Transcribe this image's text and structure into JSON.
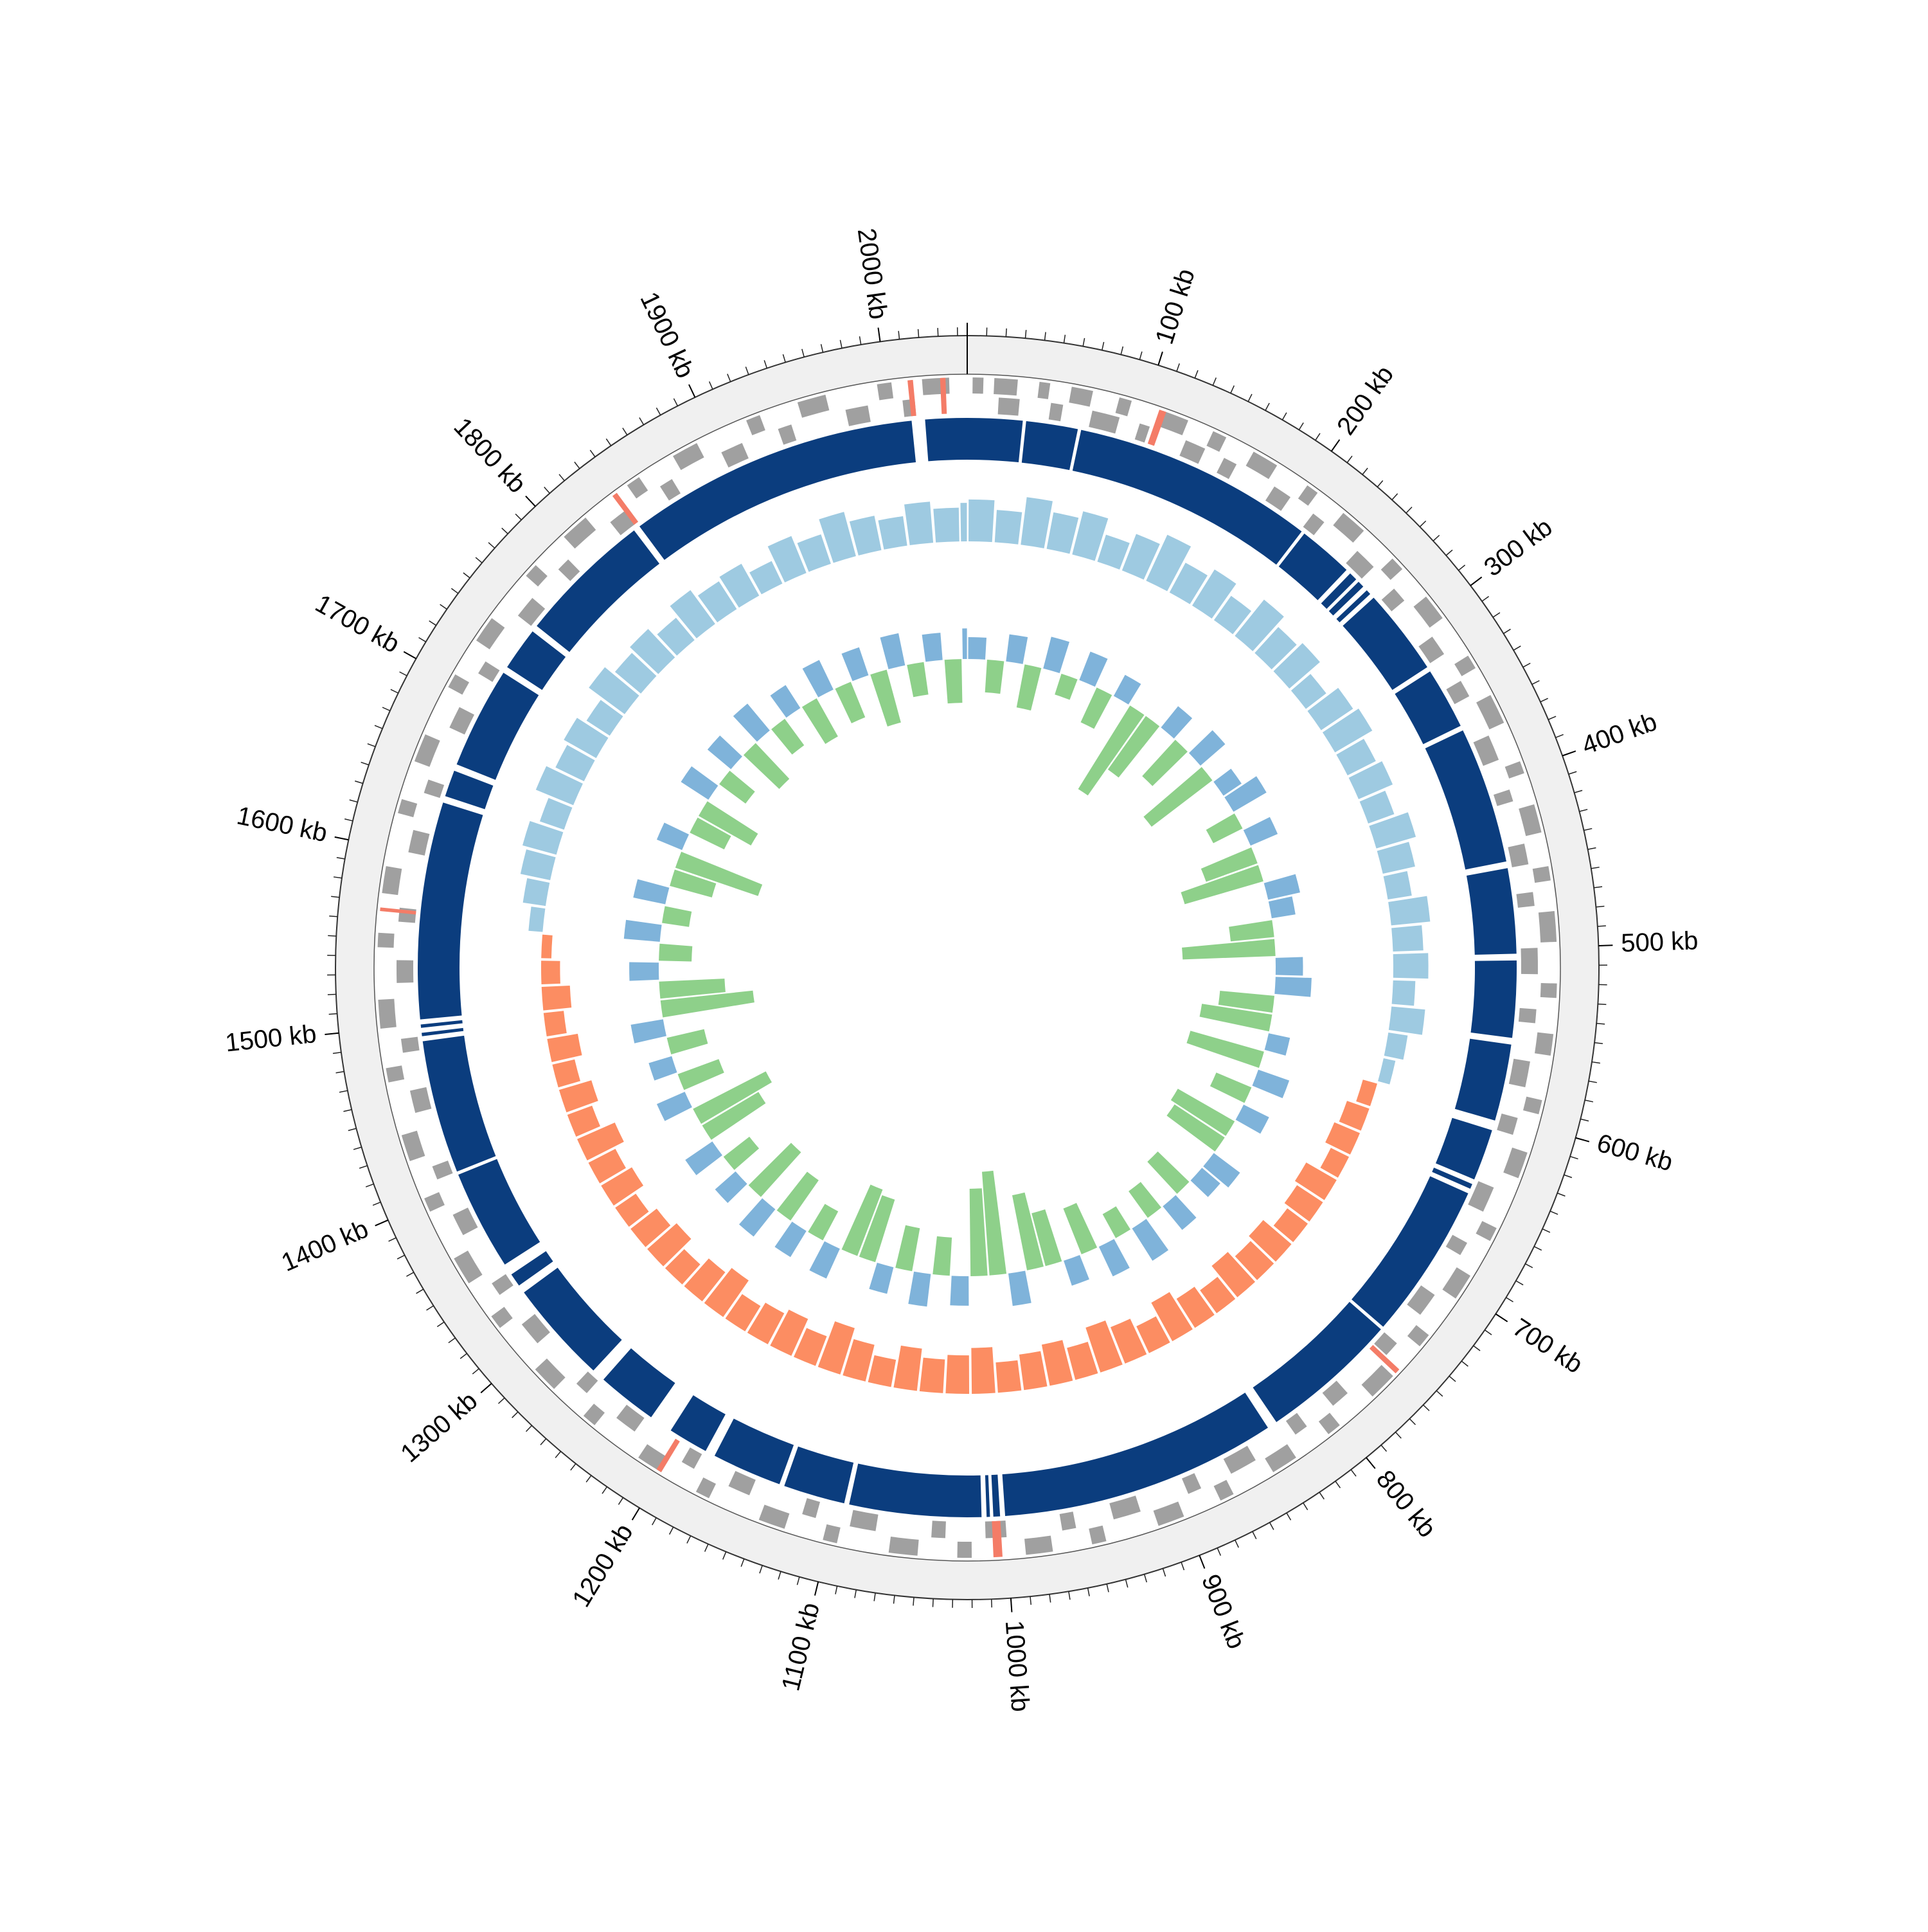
{
  "chart_data": {
    "type": "circular",
    "xlim": [
      0,
      2045
    ],
    "xticks": [
      {
        "value": 100,
        "label": "100 kb"
      },
      {
        "value": 200,
        "label": "200 kb"
      },
      {
        "value": 300,
        "label": "300 kb"
      },
      {
        "value": 400,
        "label": "400 kb"
      },
      {
        "value": 500,
        "label": "500 kb"
      },
      {
        "value": 600,
        "label": "600 kb"
      },
      {
        "value": 700,
        "label": "700 kb"
      },
      {
        "value": 800,
        "label": "800 kb"
      },
      {
        "value": 900,
        "label": "900 kb"
      },
      {
        "value": 1000,
        "label": "1000 kb"
      },
      {
        "value": 1100,
        "label": "1100 kb"
      },
      {
        "value": 1200,
        "label": "1200 kb"
      },
      {
        "value": 1300,
        "label": "1300 kb"
      },
      {
        "value": 1400,
        "label": "1400 kb"
      },
      {
        "value": 1500,
        "label": "1500 kb"
      },
      {
        "value": 1600,
        "label": "1600 kb"
      },
      {
        "value": 1700,
        "label": "1700 kb"
      },
      {
        "value": 1800,
        "label": "1800 kb"
      },
      {
        "value": 1900,
        "label": "1900 kb"
      },
      {
        "value": 2000,
        "label": "2000 kb"
      }
    ],
    "minor_tick_interval": 10,
    "genes": {
      "color": "#a0a0a0",
      "forward": [
        [
          3,
          9
        ],
        [
          15,
          28
        ],
        [
          40,
          46
        ],
        [
          58,
          70
        ],
        [
          85,
          92
        ],
        [
          110,
          125
        ],
        [
          140,
          148
        ],
        [
          165,
          180
        ],
        [
          200,
          207
        ],
        [
          225,
          240
        ],
        [
          262,
          270
        ],
        [
          290,
          305
        ],
        [
          330,
          338
        ],
        [
          355,
          372
        ],
        [
          395,
          402
        ],
        [
          420,
          436
        ],
        [
          455,
          463
        ],
        [
          480,
          497
        ],
        [
          520,
          528
        ],
        [
          548,
          560
        ],
        [
          585,
          593
        ],
        [
          615,
          630
        ],
        [
          660,
          668
        ],
        [
          690,
          705
        ],
        [
          730,
          738
        ],
        [
          760,
          776
        ],
        [
          800,
          808
        ],
        [
          830,
          845
        ],
        [
          870,
          878
        ],
        [
          900,
          915
        ],
        [
          945,
          953
        ],
        [
          975,
          990
        ],
        [
          1020,
          1028
        ],
        [
          1050,
          1066
        ],
        [
          1095,
          1103
        ],
        [
          1125,
          1140
        ],
        [
          1170,
          1178
        ],
        [
          1200,
          1215
        ],
        [
          1245,
          1253
        ],
        [
          1275,
          1290
        ],
        [
          1320,
          1328
        ],
        [
          1350,
          1366
        ],
        [
          1395,
          1403
        ],
        [
          1425,
          1440
        ],
        [
          1470,
          1478
        ],
        [
          1500,
          1516
        ],
        [
          1545,
          1553
        ],
        [
          1575,
          1590
        ],
        [
          1620,
          1628
        ],
        [
          1650,
          1666
        ],
        [
          1695,
          1703
        ],
        [
          1725,
          1740
        ],
        [
          1770,
          1778
        ],
        [
          1800,
          1816
        ],
        [
          1845,
          1853
        ],
        [
          1875,
          1890
        ],
        [
          1920,
          1928
        ],
        [
          1950,
          1966
        ],
        [
          1995,
          2003
        ],
        [
          2020,
          2035
        ]
      ],
      "reverse": [
        [
          18,
          30
        ],
        [
          48,
          55
        ],
        [
          72,
          88
        ],
        [
          100,
          106
        ],
        [
          128,
          140
        ],
        [
          152,
          160
        ],
        [
          185,
          196
        ],
        [
          212,
          220
        ],
        [
          245,
          258
        ],
        [
          275,
          284
        ],
        [
          310,
          322
        ],
        [
          340,
          350
        ],
        [
          375,
          390
        ],
        [
          408,
          415
        ],
        [
          440,
          452
        ],
        [
          468,
          476
        ],
        [
          500,
          515
        ],
        [
          535,
          543
        ],
        [
          565,
          580
        ],
        [
          598,
          608
        ],
        [
          640,
          655
        ],
        [
          675,
          683
        ],
        [
          710,
          724
        ],
        [
          745,
          754
        ],
        [
          785,
          796
        ],
        [
          815,
          823
        ],
        [
          850,
          866
        ],
        [
          885,
          893
        ],
        [
          922,
          938
        ],
        [
          960,
          968
        ],
        [
          1000,
          1012
        ],
        [
          1035,
          1043
        ],
        [
          1075,
          1090
        ],
        [
          1110,
          1118
        ],
        [
          1150,
          1163
        ],
        [
          1185,
          1193
        ],
        [
          1225,
          1238
        ],
        [
          1260,
          1268
        ],
        [
          1300,
          1314
        ],
        [
          1335,
          1343
        ],
        [
          1375,
          1388
        ],
        [
          1410,
          1418
        ],
        [
          1450,
          1463
        ],
        [
          1485,
          1493
        ],
        [
          1525,
          1538
        ],
        [
          1560,
          1568
        ],
        [
          1600,
          1613
        ],
        [
          1635,
          1643
        ],
        [
          1675,
          1688
        ],
        [
          1710,
          1718
        ],
        [
          1750,
          1763
        ],
        [
          1785,
          1793
        ],
        [
          1825,
          1838
        ],
        [
          1860,
          1868
        ],
        [
          1900,
          1913
        ],
        [
          1935,
          1943
        ],
        [
          1975,
          1988
        ],
        [
          2008,
          2015
        ]
      ]
    },
    "rna": {
      "color": "#f47c67",
      "segments": [
        [
          108,
          112
        ],
        [
          755,
          758
        ],
        [
          1003,
          1008
        ],
        [
          1200,
          1203
        ],
        [
          1565,
          1567
        ],
        [
          1835,
          1838
        ],
        [
          2012,
          2015
        ],
        [
          2030,
          2033
        ]
      ]
    },
    "contigs": {
      "color": "#0b3d7e",
      "segments": [
        [
          0,
          33
        ],
        [
          35,
          66
        ],
        [
          68,
          213
        ],
        [
          215,
          248
        ],
        [
          251,
          256
        ],
        [
          258,
          262
        ],
        [
          265,
          268
        ],
        [
          271,
          323
        ],
        [
          326,
          363
        ],
        [
          366,
          448
        ],
        [
          452,
          503
        ],
        [
          507,
          553
        ],
        [
          557,
          603
        ],
        [
          609,
          640
        ],
        [
          643,
          646
        ],
        [
          649,
          743
        ],
        [
          745,
          828
        ],
        [
          834,
          1000
        ],
        [
          1003,
          1007
        ],
        [
          1009,
          1011
        ],
        [
          1014,
          1093
        ],
        [
          1096,
          1133
        ],
        [
          1136,
          1178
        ],
        [
          1184,
          1208
        ],
        [
          1222,
          1258
        ],
        [
          1266,
          1328
        ],
        [
          1333,
          1341
        ],
        [
          1348,
          1408
        ],
        [
          1410,
          1490
        ],
        [
          1493,
          1495
        ],
        [
          1498,
          1500
        ],
        [
          1503,
          1633
        ],
        [
          1637,
          1653
        ],
        [
          1657,
          1718
        ],
        [
          1722,
          1748
        ],
        [
          1752,
          1833
        ],
        [
          1837,
          2012
        ],
        [
          2020,
          2045
        ]
      ]
    },
    "x": [
      0,
      20,
      40,
      60,
      80,
      100,
      120,
      140,
      160,
      180,
      200,
      220,
      240,
      260,
      280,
      300,
      320,
      340,
      360,
      380,
      400,
      420,
      440,
      460,
      480,
      500,
      520,
      540,
      560,
      580,
      600,
      620,
      640,
      660,
      680,
      700,
      720,
      740,
      760,
      780,
      800,
      820,
      840,
      860,
      880,
      900,
      920,
      940,
      960,
      980,
      1000,
      1020,
      1040,
      1060,
      1080,
      1100,
      1120,
      1140,
      1160,
      1180,
      1200,
      1220,
      1240,
      1260,
      1280,
      1300,
      1320,
      1340,
      1360,
      1380,
      1400,
      1420,
      1440,
      1460,
      1480,
      1500,
      1520,
      1540,
      1560,
      1580,
      1600,
      1620,
      1640,
      1660,
      1680,
      1700,
      1720,
      1740,
      1760,
      1780,
      1800,
      1820,
      1840,
      1860,
      1880,
      1900,
      1920,
      1940,
      1960,
      1980,
      2000,
      2020,
      2040
    ],
    "gc_skew": {
      "ylim": [
        -1,
        1
      ],
      "color_positive": "#9ecae1",
      "color_negative": "#fc8d62",
      "values": [
        0.62,
        0.48,
        0.71,
        0.55,
        0.66,
        0.42,
        0.58,
        0.75,
        0.5,
        0.63,
        0.44,
        0.69,
        0.52,
        0.6,
        0.38,
        0.57,
        0.64,
        0.47,
        0.55,
        0.41,
        0.61,
        0.49,
        0.36,
        0.58,
        0.45,
        0.52,
        0.33,
        0.5,
        0.29,
        0.18,
        -0.22,
        -0.35,
        -0.41,
        -0.3,
        -0.52,
        -0.46,
        -0.38,
        -0.55,
        -0.48,
        -0.6,
        -0.42,
        -0.51,
        -0.65,
        -0.44,
        -0.58,
        -0.7,
        -0.49,
        -0.62,
        -0.53,
        -0.45,
        -0.68,
        -0.57,
        -0.5,
        -0.63,
        -0.41,
        -0.56,
        -0.72,
        -0.47,
        -0.6,
        -0.52,
        -0.44,
        -0.66,
        -0.55,
        -0.4,
        -0.58,
        -0.49,
        -0.37,
        -0.53,
        -0.45,
        -0.61,
        -0.39,
        -0.5,
        -0.34,
        -0.46,
        -0.3,
        -0.42,
        -0.28,
        -0.15,
        0.21,
        0.34,
        0.45,
        0.52,
        0.38,
        0.6,
        0.47,
        0.55,
        0.41,
        0.66,
        0.5,
        0.58,
        0.43,
        0.62,
        0.49,
        0.54,
        0.37,
        0.59,
        0.46,
        0.68,
        0.52,
        0.44,
        0.61,
        0.5,
        0.57
      ]
    },
    "gc_content": {
      "ylim": [
        -1,
        1
      ],
      "color_positive": "#7fb3da",
      "color_negative": "#8ed08a",
      "values": [
        0.2,
        -0.3,
        0.25,
        -0.4,
        0.3,
        -0.2,
        0.28,
        -0.35,
        0.22,
        -0.9,
        -0.6,
        0.25,
        -0.45,
        0.3,
        -0.7,
        0.2,
        0.35,
        -0.3,
        0.27,
        -0.5,
        -0.75,
        0.3,
        0.22,
        -0.4,
        -0.85,
        0.25,
        0.33,
        -0.5,
        -0.65,
        0.2,
        -0.7,
        0.3,
        -0.35,
        0.26,
        -0.6,
        -0.55,
        0.3,
        0.22,
        -0.4,
        0.28,
        -0.3,
        0.35,
        -0.25,
        0.3,
        -0.45,
        0.24,
        -0.5,
        -0.7,
        0.3,
        -0.95,
        -0.8,
        0.27,
        -0.35,
        0.3,
        -0.4,
        0.25,
        -0.6,
        -0.65,
        0.3,
        -0.3,
        0.28,
        -0.45,
        0.32,
        -0.55,
        0.25,
        -0.3,
        0.3,
        -0.6,
        -0.75,
        0.28,
        -0.4,
        0.22,
        -0.35,
        0.3,
        -0.85,
        -0.6,
        0.27,
        -0.3,
        0.33,
        -0.25,
        0.3,
        -0.4,
        -0.8,
        0.25,
        -0.35,
        -0.55,
        0.3,
        -0.3,
        0.28,
        -0.45,
        0.32,
        -0.3,
        0.25,
        -0.4,
        0.3,
        -0.35,
        0.27,
        -0.5,
        0.3,
        -0.3,
        0.25,
        -0.4,
        0.28
      ]
    }
  }
}
